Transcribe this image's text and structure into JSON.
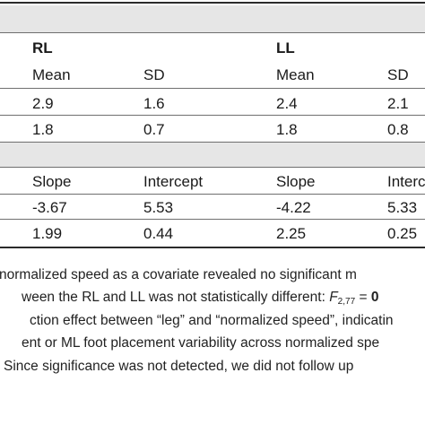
{
  "table": {
    "groups": [
      "RL",
      "LL"
    ],
    "header1": [
      "Mean",
      "SD",
      "Mean",
      "SD"
    ],
    "rows1": [
      [
        "2.9",
        "1.6",
        "2.4",
        "2.1"
      ],
      [
        "1.8",
        "0.7",
        "1.8",
        "0.8"
      ]
    ],
    "header2": [
      "Slope",
      "Intercept",
      "Slope",
      "Interce"
    ],
    "rows2": [
      [
        "-3.67",
        "5.53",
        "-4.22",
        "5.33"
      ],
      [
        "1.99",
        "0.44",
        "2.25",
        "0.25"
      ]
    ]
  },
  "notes": {
    "line1": "normalized speed as a covariate revealed no significant m",
    "line2_text": "ween the RL and LL was not statistically different: ",
    "line2_stat": "F",
    "line2_sub": "2,77",
    "line2_eq": " = ",
    "line2_tail": "0",
    "line3": "ction effect between “leg” and “normalized speed”, indicatin",
    "line4": "ent or ML foot placement variability across normalized spe",
    "line5": " Since significance was not detected, we did not follow up"
  }
}
